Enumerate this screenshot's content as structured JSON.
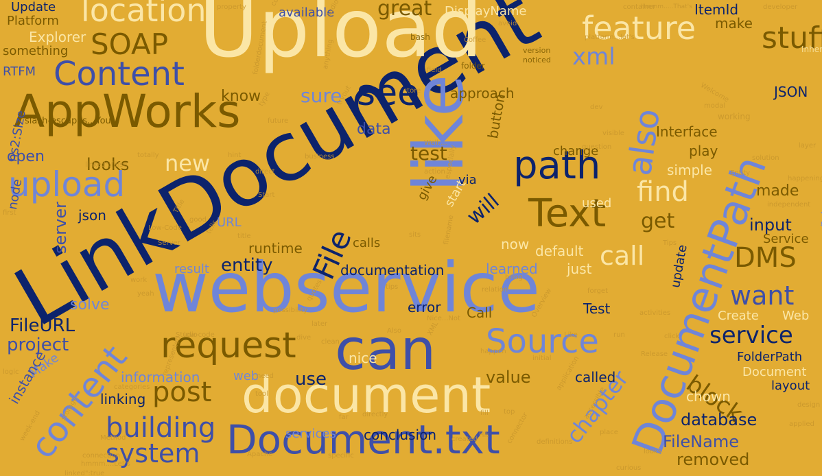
{
  "background_color": "#E2AC33",
  "palette": {
    "navy": "#0C236C",
    "blue": "#3E4FA8",
    "periwinkle": "#6F85D8",
    "cream": "#FBE6A6",
    "olive": "#7A5A00",
    "faint": "#C8962C"
  },
  "words": [
    {
      "text": "LinkDocument",
      "color": "navy"
    },
    {
      "text": "Upload",
      "color": "cream"
    },
    {
      "text": "webservice",
      "color": "periwinkle"
    },
    {
      "text": "like",
      "color": "periwinkle"
    },
    {
      "text": "can",
      "color": "blue"
    },
    {
      "text": "document",
      "color": "cream"
    },
    {
      "text": "Document.txt",
      "color": "blue"
    },
    {
      "text": "AppWorks",
      "color": "olive"
    },
    {
      "text": "DocumentPath",
      "color": "periwinkle"
    },
    {
      "text": "content",
      "color": "periwinkle"
    },
    {
      "text": "Text",
      "color": "olive"
    },
    {
      "text": "path",
      "color": "navy"
    },
    {
      "text": "request",
      "color": "olive"
    },
    {
      "text": "upload",
      "color": "periwinkle"
    },
    {
      "text": "Content",
      "color": "blue"
    },
    {
      "text": "location",
      "color": "cream"
    },
    {
      "text": "feature",
      "color": "cream"
    },
    {
      "text": "see",
      "color": "navy"
    },
    {
      "text": "Source",
      "color": "periwinkle"
    },
    {
      "text": "also",
      "color": "periwinkle"
    },
    {
      "text": "SOAP",
      "color": "olive"
    },
    {
      "text": "post",
      "color": "olive"
    },
    {
      "text": "building",
      "color": "blue"
    },
    {
      "text": "system",
      "color": "blue"
    },
    {
      "text": "File",
      "color": "navy"
    },
    {
      "text": "find",
      "color": "cream"
    },
    {
      "text": "DMS",
      "color": "olive"
    },
    {
      "text": "want",
      "color": "blue"
    },
    {
      "text": "service",
      "color": "navy"
    },
    {
      "text": "call",
      "color": "cream"
    },
    {
      "text": "block",
      "color": "olive"
    },
    {
      "text": "chapter",
      "color": "periwinkle"
    },
    {
      "text": "stuff",
      "color": "olive"
    },
    {
      "text": "xml",
      "color": "periwinkle"
    },
    {
      "text": "great",
      "color": "olive"
    },
    {
      "text": "new",
      "color": "cream"
    },
    {
      "text": "get",
      "color": "olive"
    },
    {
      "text": "will",
      "color": "navy"
    },
    {
      "text": "sure",
      "color": "periwinkle"
    },
    {
      "text": "test",
      "color": "olive"
    },
    {
      "text": "make",
      "color": "olive"
    },
    {
      "text": "Update",
      "color": "navy"
    },
    {
      "text": "Platform",
      "color": "olive"
    },
    {
      "text": "Explorer",
      "color": "cream"
    },
    {
      "text": "something",
      "color": "olive"
    },
    {
      "text": "RTFM",
      "color": "blue"
    },
    {
      "text": "ns2:Size",
      "color": "blue"
    },
    {
      "text": "open",
      "color": "blue"
    },
    {
      "text": "looks",
      "color": "olive"
    },
    {
      "text": "know",
      "color": "olive"
    },
    {
      "text": "data",
      "color": "blue"
    },
    {
      "text": "Interface",
      "color": "olive"
    },
    {
      "text": "JSON",
      "color": "navy"
    },
    {
      "text": "input",
      "color": "navy"
    },
    {
      "text": "made",
      "color": "olive"
    },
    {
      "text": "play",
      "color": "olive"
    },
    {
      "text": "simple",
      "color": "cream"
    },
    {
      "text": "Service",
      "color": "olive"
    },
    {
      "text": "DisplayName",
      "color": "cream"
    },
    {
      "text": "ItemId",
      "color": "navy"
    },
    {
      "text": "available",
      "color": "blue"
    },
    {
      "text": "approach",
      "color": "olive"
    },
    {
      "text": "button",
      "color": "olive"
    },
    {
      "text": "change",
      "color": "olive"
    },
    {
      "text": "entity",
      "color": "navy"
    },
    {
      "text": "runtime",
      "color": "olive"
    },
    {
      "text": "server",
      "color": "blue"
    },
    {
      "text": "node",
      "color": "blue"
    },
    {
      "text": "json",
      "color": "navy"
    },
    {
      "text": "URL",
      "color": "periwinkle"
    },
    {
      "text": "result",
      "color": "periwinkle"
    },
    {
      "text": "documentation",
      "color": "navy"
    },
    {
      "text": "calls",
      "color": "olive"
    },
    {
      "text": "learned",
      "color": "periwinkle"
    },
    {
      "text": "default",
      "color": "cream"
    },
    {
      "text": "just",
      "color": "cream"
    },
    {
      "text": "now",
      "color": "cream"
    },
    {
      "text": "solve",
      "color": "periwinkle"
    },
    {
      "text": "FileURL",
      "color": "navy"
    },
    {
      "text": "project",
      "color": "blue"
    },
    {
      "text": "Make",
      "color": "periwinkle"
    },
    {
      "text": "instance",
      "color": "blue"
    },
    {
      "text": "information",
      "color": "periwinkle"
    },
    {
      "text": "web",
      "color": "periwinkle"
    },
    {
      "text": "use",
      "color": "navy"
    },
    {
      "text": "nice",
      "color": "cream"
    },
    {
      "text": "value",
      "color": "olive"
    },
    {
      "text": "called",
      "color": "navy"
    },
    {
      "text": "linking",
      "color": "navy"
    },
    {
      "text": "error",
      "color": "navy"
    },
    {
      "text": "Call",
      "color": "olive"
    },
    {
      "text": "Test",
      "color": "navy"
    },
    {
      "text": "Create",
      "color": "cream"
    },
    {
      "text": "Web",
      "color": "cream"
    },
    {
      "text": "FolderPath",
      "color": "navy"
    },
    {
      "text": "Document",
      "color": "cream"
    },
    {
      "text": "layout",
      "color": "navy"
    },
    {
      "text": "chown",
      "color": "cream"
    },
    {
      "text": "database",
      "color": "navy"
    },
    {
      "text": "FileName",
      "color": "blue"
    },
    {
      "text": "removed",
      "color": "olive"
    },
    {
      "text": "services",
      "color": "periwinkle"
    },
    {
      "text": "conclusion",
      "color": "navy"
    },
    {
      "text": "update",
      "color": "navy"
    },
    {
      "text": "give",
      "color": "olive"
    },
    {
      "text": "start",
      "color": "cream"
    },
    {
      "text": "via",
      "color": "navy"
    },
    {
      "text": "used",
      "color": "cream"
    },
    {
      "text": "retrieved",
      "color": "periwinkle"
    },
    {
      "text": "Inherit",
      "color": "cream"
    },
    {
      "text": "slash-escapes...You",
      "color": "olive"
    },
    {
      "text": "Coffee",
      "color": "faint"
    },
    {
      "text": "folder",
      "color": "olive"
    },
    {
      "text": "version",
      "color": "olive"
    },
    {
      "text": "noticed",
      "color": "olive"
    },
    {
      "text": "platform...let's",
      "color": "faint"
    },
    {
      "text": "container",
      "color": "faint"
    },
    {
      "text": "Hmmm.....That's",
      "color": "faint"
    },
    {
      "text": "developer",
      "color": "faint"
    },
    {
      "text": "property",
      "color": "faint"
    },
    {
      "text": "conflicts",
      "color": "faint"
    },
    {
      "text": "bash",
      "color": "olive"
    },
    {
      "text": "avoid",
      "color": "faint"
    },
    {
      "text": "Welcome",
      "color": "faint"
    },
    {
      "text": "modal",
      "color": "faint"
    },
    {
      "text": "working",
      "color": "faint"
    },
    {
      "text": "solution",
      "color": "faint"
    },
    {
      "text": "Entity",
      "color": "faint"
    },
    {
      "text": "happening",
      "color": "faint"
    },
    {
      "text": "layer",
      "color": "faint"
    },
    {
      "text": "linked\":false",
      "color": "faint"
    },
    {
      "text": "linked\":true",
      "color": "faint"
    },
    {
      "text": "independent",
      "color": "faint"
    },
    {
      "text": "Tips",
      "color": "faint"
    },
    {
      "text": "tips",
      "color": "faint"
    },
    {
      "text": "business",
      "color": "faint"
    },
    {
      "text": "totally",
      "color": "faint"
    },
    {
      "text": "hint",
      "color": "faint"
    },
    {
      "text": "Well....",
      "color": "faint"
    },
    {
      "text": "question",
      "color": "faint"
    },
    {
      "text": "action",
      "color": "faint"
    },
    {
      "text": "especially",
      "color": "faint"
    },
    {
      "text": "direct",
      "color": "faint"
    },
    {
      "text": "good",
      "color": "faint"
    },
    {
      "text": "Start",
      "color": "faint"
    },
    {
      "text": "title",
      "color": "faint"
    },
    {
      "text": "Title",
      "color": "faint"
    },
    {
      "text": "Low-Code",
      "color": "faint"
    },
    {
      "text": "low-code",
      "color": "faint"
    },
    {
      "text": "Studio",
      "color": "faint"
    },
    {
      "text": "first",
      "color": "faint"
    },
    {
      "text": "bring",
      "color": "faint"
    },
    {
      "text": "forget",
      "color": "faint"
    },
    {
      "text": "relation",
      "color": "faint"
    },
    {
      "text": "Overview",
      "color": "faint"
    },
    {
      "text": "activities",
      "color": "faint"
    },
    {
      "text": "Release",
      "color": "faint"
    },
    {
      "text": "click",
      "color": "faint"
    },
    {
      "text": "Like",
      "color": "faint"
    },
    {
      "text": "run",
      "color": "faint"
    },
    {
      "text": "Hit",
      "color": "faint"
    },
    {
      "text": "top",
      "color": "faint"
    },
    {
      "text": "Nice...Not",
      "color": "faint"
    },
    {
      "text": "XML",
      "color": "faint"
    },
    {
      "text": "happen",
      "color": "faint"
    },
    {
      "text": "initial",
      "color": "faint"
    },
    {
      "text": "application",
      "color": "faint"
    },
    {
      "text": "accessible",
      "color": "faint"
    },
    {
      "text": "connector",
      "color": "faint"
    },
    {
      "text": "definitions",
      "color": "faint"
    },
    {
      "text": "place",
      "color": "faint"
    },
    {
      "text": "looks",
      "color": "faint"
    },
    {
      "text": "curious",
      "color": "faint"
    },
    {
      "text": "created",
      "color": "faint"
    },
    {
      "text": "Apache",
      "color": "faint"
    },
    {
      "text": "storage",
      "color": "faint"
    },
    {
      "text": "week-end",
      "color": "faint"
    },
    {
      "text": "connection",
      "color": "faint"
    },
    {
      "text": "hmmm....Let's",
      "color": "faint"
    },
    {
      "text": "logic",
      "color": "faint"
    },
    {
      "text": "categories",
      "color": "faint"
    },
    {
      "text": "Method",
      "color": "faint"
    },
    {
      "text": "tool",
      "color": "faint"
    },
    {
      "text": "need",
      "color": "faint"
    },
    {
      "text": "far",
      "color": "faint"
    },
    {
      "text": "specific",
      "color": "faint"
    },
    {
      "text": "directly",
      "color": "faint"
    },
    {
      "text": "Also",
      "color": "faint"
    },
    {
      "text": "dive",
      "color": "faint"
    },
    {
      "text": "clean",
      "color": "faint"
    },
    {
      "text": "quotes",
      "color": "faint"
    },
    {
      "text": "possibility",
      "color": "faint"
    },
    {
      "text": "represented",
      "color": "faint"
    },
    {
      "text": "yeah",
      "color": "faint"
    },
    {
      "text": "work",
      "color": "faint"
    },
    {
      "text": "later",
      "color": "faint"
    },
    {
      "text": "Server",
      "color": "faint"
    },
    {
      "text": "tells",
      "color": "faint"
    },
    {
      "text": "folderdocument",
      "color": "faint"
    },
    {
      "text": "anything",
      "color": "faint"
    },
    {
      "text": "fill",
      "color": "faint"
    },
    {
      "text": "filename",
      "color": "faint"
    },
    {
      "text": "store",
      "color": "faint"
    },
    {
      "text": "sits",
      "color": "faint"
    },
    {
      "text": "type",
      "color": "faint"
    },
    {
      "text": "future",
      "color": "faint"
    },
    {
      "text": "tryout",
      "color": "faint"
    },
    {
      "text": "field",
      "color": "faint"
    },
    {
      "text": "visible",
      "color": "faint"
    },
    {
      "text": "audio",
      "color": "faint"
    },
    {
      "text": "dev",
      "color": "faint"
    },
    {
      "text": "applied",
      "color": "faint"
    },
    {
      "text": "design",
      "color": "faint"
    },
    {
      "text": "description",
      "color": "faint"
    },
    {
      "text": "work?....Hell",
      "color": "faint"
    },
    {
      "text": "specifically",
      "color": "faint"
    },
    {
      "text": "light",
      "color": "faint"
    },
    {
      "text": "might",
      "color": "faint"
    },
    {
      "text": "another",
      "color": "faint"
    },
    {
      "text": "filled",
      "color": "faint"
    },
    {
      "text": "ItemId",
      "color": "faint"
    }
  ]
}
